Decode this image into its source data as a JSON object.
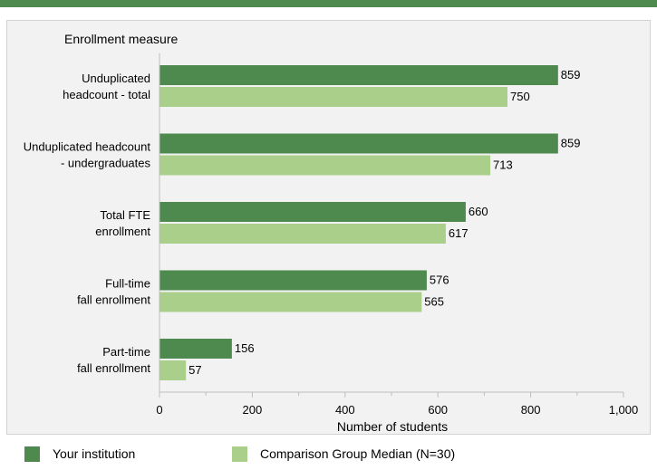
{
  "chart_data": {
    "type": "bar",
    "orientation": "horizontal",
    "ylabel": "Enrollment measure",
    "xlabel": "Number of students",
    "xlim": [
      0,
      1000
    ],
    "xticks": [
      0,
      200,
      400,
      600,
      800,
      1000
    ],
    "xtick_labels": [
      "0",
      "200",
      "400",
      "600",
      "800",
      "1,000"
    ],
    "categories": [
      [
        "Unduplicated",
        "headcount - total"
      ],
      [
        "Unduplicated headcount",
        "- undergraduates"
      ],
      [
        "Total FTE",
        "enrollment"
      ],
      [
        "Full-time",
        "fall enrollment"
      ],
      [
        "Part-time",
        "fall enrollment"
      ]
    ],
    "series": [
      {
        "name": "Your institution",
        "color": "#4e8a4e",
        "values": [
          859,
          859,
          660,
          576,
          156
        ]
      },
      {
        "name": "Comparison Group Median (N=30)",
        "color": "#a9cf8a",
        "values": [
          750,
          713,
          617,
          565,
          57
        ]
      }
    ],
    "grid": false,
    "legend_position": "bottom"
  }
}
